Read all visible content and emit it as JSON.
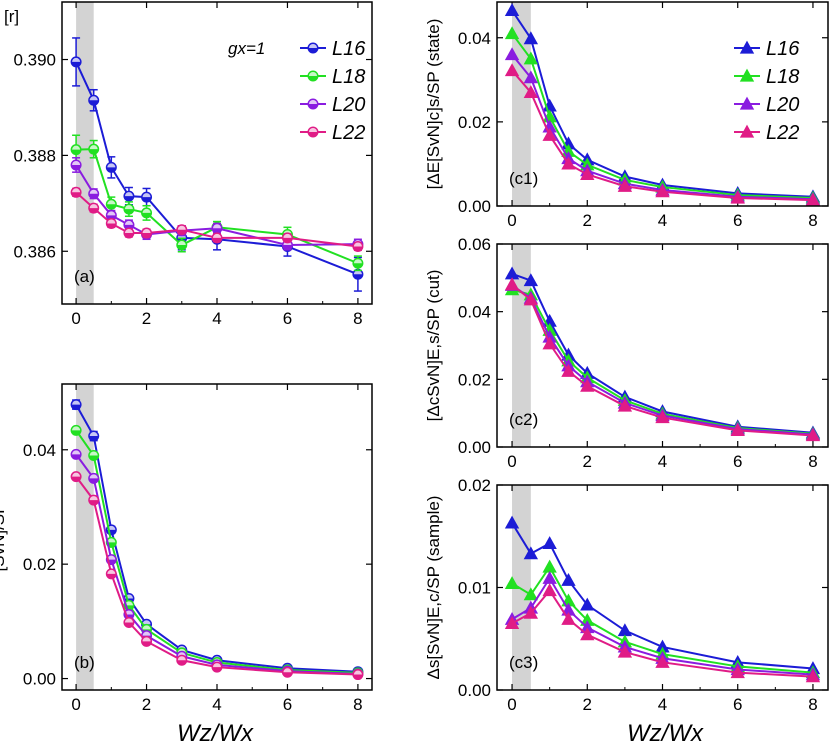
{
  "figure": {
    "x_title_left": "Wz/Wx",
    "x_title_right": "Wz/Wx",
    "series_names": [
      "L16",
      "L18",
      "L20",
      "L22"
    ],
    "colors": {
      "L16": "#1c1cd6",
      "L18": "#22e022",
      "L20": "#8a1ce0",
      "L22": "#e01c86",
      "shade": "#d3d3d3"
    }
  },
  "chart_data": [
    {
      "id": "a",
      "type": "line",
      "panel_label": "(a)",
      "ylabel": "[r]",
      "annotation": "gx=1",
      "marker": "circle",
      "legend": "top-right",
      "xlim": [
        -0.4,
        8.4
      ],
      "ylim": [
        0.3849,
        0.3912
      ],
      "xticks": [
        "0",
        "2",
        "4",
        "6",
        "8"
      ],
      "yticks": [
        "0.386",
        "0.388",
        "0.390"
      ],
      "shaded_range": [
        0,
        0.5
      ],
      "x": [
        0,
        0.5,
        1,
        1.5,
        2,
        3,
        4,
        6,
        8
      ],
      "series": [
        {
          "name": "L16",
          "values": [
            0.38995,
            0.38915,
            0.38775,
            0.38715,
            0.38713,
            0.38628,
            0.38625,
            0.3861,
            0.38552
          ],
          "errors": [
            0.0005,
            0.00022,
            0.00022,
            0.00018,
            0.00018,
            0.00025,
            0.00022,
            0.0002,
            0.00035
          ]
        },
        {
          "name": "L18",
          "values": [
            0.38812,
            0.38813,
            0.38698,
            0.38688,
            0.3868,
            0.38613,
            0.3865,
            0.38635,
            0.38575
          ],
          "errors": [
            0.0003,
            0.00018,
            0.00015,
            0.00015,
            0.00015,
            0.00014,
            0.00012,
            0.00015,
            0.00015
          ]
        },
        {
          "name": "L20",
          "values": [
            0.3878,
            0.3872,
            0.38675,
            0.38655,
            0.38635,
            0.38643,
            0.38648,
            0.38613,
            0.38615
          ],
          "errors": [
            0.00015,
            0.0001,
            0.0001,
            0.0001,
            0.0001,
            0.0001,
            0.0001,
            0.0001,
            0.0001
          ]
        },
        {
          "name": "L22",
          "values": [
            0.38723,
            0.3869,
            0.38658,
            0.38638,
            0.38638,
            0.38645,
            0.38628,
            0.38628,
            0.3861
          ],
          "errors": [
            8e-05,
            8e-05,
            8e-05,
            8e-05,
            8e-05,
            8e-05,
            8e-05,
            8e-05,
            8e-05
          ]
        }
      ]
    },
    {
      "id": "b",
      "type": "line",
      "panel_label": "(b)",
      "ylabel": "[SvN]/SP",
      "marker": "circle",
      "xlim": [
        -0.4,
        8.4
      ],
      "ylim": [
        -0.002,
        0.0515
      ],
      "xticks": [
        "0",
        "2",
        "4",
        "6",
        "8"
      ],
      "yticks": [
        "0.00",
        "0.02",
        "0.04"
      ],
      "shaded_range": [
        0,
        0.5
      ],
      "x": [
        0,
        0.5,
        1,
        1.5,
        2,
        3,
        4,
        6,
        8
      ],
      "series": [
        {
          "name": "L16",
          "values": [
            0.0479,
            0.0424,
            0.026,
            0.014,
            0.0095,
            0.005,
            0.0032,
            0.0018,
            0.0012
          ],
          "errors": [
            0.0008,
            0.0008,
            0.0006,
            0.0005,
            0.0004,
            0.0003,
            0.0003,
            0.0002,
            0.0002
          ]
        },
        {
          "name": "L18",
          "values": [
            0.0434,
            0.039,
            0.0238,
            0.0128,
            0.0086,
            0.0045,
            0.0028,
            0.0015,
            0.001
          ],
          "errors": [
            0.0005,
            0.0005,
            0.0004,
            0.0004,
            0.0003,
            0.0003,
            0.0002,
            0.0002,
            0.0002
          ]
        },
        {
          "name": "L20",
          "values": [
            0.0392,
            0.035,
            0.0208,
            0.0112,
            0.0075,
            0.0039,
            0.0024,
            0.0013,
            0.0008
          ],
          "errors": [
            0.0004,
            0.0004,
            0.0004,
            0.0003,
            0.0003,
            0.0002,
            0.0002,
            0.0002,
            0.0001
          ]
        },
        {
          "name": "L22",
          "values": [
            0.0353,
            0.0312,
            0.0183,
            0.0098,
            0.0065,
            0.0032,
            0.002,
            0.0011,
            0.0007
          ],
          "errors": [
            0.0004,
            0.0004,
            0.0004,
            0.0003,
            0.0003,
            0.0002,
            0.0002,
            0.0002,
            0.0001
          ]
        }
      ]
    },
    {
      "id": "c1",
      "type": "line",
      "panel_label": "(c1)",
      "ylabel": "[ΔE[SvN]c]s/SP (state)",
      "marker": "triangle",
      "legend": "top-right",
      "xlim": [
        -0.4,
        8.4
      ],
      "ylim": [
        0,
        0.0485
      ],
      "xticks": [
        "0",
        "2",
        "4",
        "6",
        "8"
      ],
      "yticks": [
        "0.00",
        "0.02",
        "0.04"
      ],
      "shaded_range": [
        0,
        0.5
      ],
      "x": [
        0,
        0.5,
        1,
        1.5,
        2,
        3,
        4,
        6,
        8
      ],
      "series": [
        {
          "name": "L16",
          "values": [
            0.0465,
            0.0398,
            0.0238,
            0.0148,
            0.011,
            0.007,
            0.005,
            0.003,
            0.0022
          ]
        },
        {
          "name": "L18",
          "values": [
            0.041,
            0.035,
            0.0212,
            0.013,
            0.0098,
            0.0062,
            0.0045,
            0.0026,
            0.0019
          ]
        },
        {
          "name": "L20",
          "values": [
            0.036,
            0.0305,
            0.0188,
            0.0113,
            0.0084,
            0.0053,
            0.0038,
            0.0022,
            0.0016
          ]
        },
        {
          "name": "L22",
          "values": [
            0.0322,
            0.027,
            0.0168,
            0.01,
            0.0075,
            0.0047,
            0.0034,
            0.0019,
            0.0014
          ]
        }
      ]
    },
    {
      "id": "c2",
      "type": "line",
      "panel_label": "(c2)",
      "ylabel": "[ΔcSvN]E,s/SP (cut)",
      "marker": "triangle",
      "xlim": [
        -0.4,
        8.4
      ],
      "ylim": [
        0,
        0.06
      ],
      "xticks": [
        "0",
        "2",
        "4",
        "6",
        "8"
      ],
      "yticks": [
        "0.00",
        "0.02",
        "0.04",
        "0.06"
      ],
      "shaded_range": [
        0,
        0.5
      ],
      "x": [
        0,
        0.5,
        1,
        1.5,
        2,
        3,
        4,
        6,
        8
      ],
      "series": [
        {
          "name": "L16",
          "values": [
            0.0512,
            0.0492,
            0.0372,
            0.0272,
            0.0218,
            0.0148,
            0.0105,
            0.006,
            0.0042
          ]
        },
        {
          "name": "L18",
          "values": [
            0.0465,
            0.045,
            0.0345,
            0.0255,
            0.0205,
            0.0138,
            0.0098,
            0.0056,
            0.0039
          ]
        },
        {
          "name": "L20",
          "values": [
            0.0478,
            0.044,
            0.0325,
            0.024,
            0.0193,
            0.013,
            0.0093,
            0.0053,
            0.0037
          ]
        },
        {
          "name": "L22",
          "values": [
            0.048,
            0.0435,
            0.0305,
            0.0224,
            0.018,
            0.0121,
            0.0087,
            0.0049,
            0.0034
          ]
        }
      ]
    },
    {
      "id": "c3",
      "type": "line",
      "panel_label": "(c3)",
      "ylabel": "Δs[SvN]E,c/SP (sample)",
      "marker": "triangle",
      "xlim": [
        -0.4,
        8.4
      ],
      "ylim": [
        0,
        0.02
      ],
      "xticks": [
        "0",
        "2",
        "4",
        "6",
        "8"
      ],
      "yticks": [
        "0.00",
        "0.01",
        "0.02"
      ],
      "shaded_range": [
        0,
        0.5
      ],
      "x": [
        0,
        0.5,
        1,
        1.5,
        2,
        3,
        4,
        6,
        8
      ],
      "series": [
        {
          "name": "L16",
          "values": [
            0.0163,
            0.0133,
            0.0143,
            0.0107,
            0.0083,
            0.0058,
            0.0042,
            0.0027,
            0.0021
          ]
        },
        {
          "name": "L18",
          "values": [
            0.0104,
            0.0093,
            0.012,
            0.0087,
            0.0068,
            0.0047,
            0.0035,
            0.0023,
            0.0017
          ]
        },
        {
          "name": "L20",
          "values": [
            0.0069,
            0.008,
            0.0109,
            0.0078,
            0.0061,
            0.0042,
            0.0031,
            0.002,
            0.0015
          ]
        },
        {
          "name": "L22",
          "values": [
            0.0065,
            0.0075,
            0.0097,
            0.0069,
            0.0054,
            0.0037,
            0.0027,
            0.0017,
            0.0013
          ]
        }
      ]
    }
  ]
}
